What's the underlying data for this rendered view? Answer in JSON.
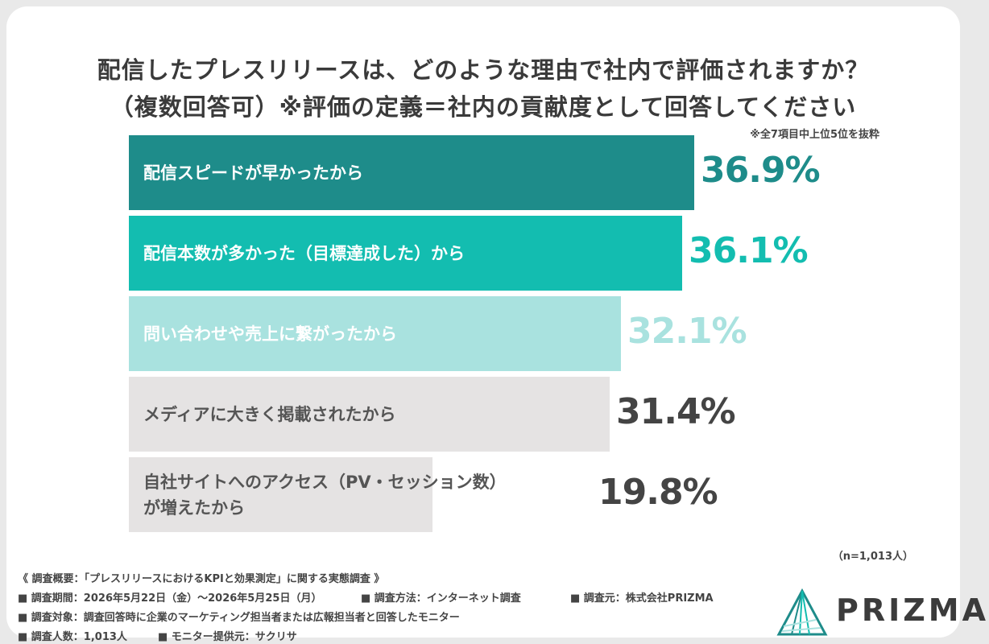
{
  "title_line1": "配信したプレスリリースは、どのような理由で社内で評価されますか？",
  "title_line2": "（複数回答可）※評価の定義＝社内の貢献度として回答してください",
  "note": "※全7項目中上位5位を抜粋",
  "sample": "（n=1,013人）",
  "chart_data": {
    "type": "bar",
    "orientation": "horizontal",
    "title": "配信したプレスリリースは、どのような理由で社内で評価されますか？（複数回答可）※評価の定義＝社内の貢献度として回答してください",
    "categories": [
      "配信スピードが早かったから",
      "配信本数が多かった（目標達成した）から",
      "問い合わせや売上に繋がったから",
      "メディアに大きく掲載されたから",
      "自社サイトへのアクセス（PV・セッション数）が増えたから"
    ],
    "category_lines": [
      [
        "配信スピードが早かったから"
      ],
      [
        "配信本数が多かった（目標達成した）から"
      ],
      [
        "問い合わせや売上に繋がったから"
      ],
      [
        "メディアに大きく掲載されたから"
      ],
      [
        "自社サイトへのアクセス（PV・セッション数）",
        "が増えたから"
      ]
    ],
    "values": [
      36.9,
      36.1,
      32.1,
      31.4,
      19.8
    ],
    "value_labels": [
      "36.9%",
      "36.1%",
      "32.1%",
      "31.4%",
      "19.8%"
    ],
    "unit": "%",
    "bar_colors": [
      "#1e8c8a",
      "#13bdb0",
      "#a9e2df",
      "#e5e3e3",
      "#e5e3e3"
    ],
    "label_colors": [
      "#ffffff",
      "#ffffff",
      "#ffffff",
      "#555555",
      "#555555"
    ],
    "value_colors": [
      "#1e8c8a",
      "#13bdb0",
      "#a9e2df",
      "#444444",
      "#444444"
    ]
  },
  "footer": {
    "line1": "《 調査概要：「プレスリリースにおけるKPIと効果測定」に関する実態調査 》",
    "period": "■ 調査期間：2026年5月22日（金）〜2026年5月25日（月）",
    "method": "■ 調査方法：インターネット調査",
    "source": "■ 調査元：株式会社PRIZMA",
    "target": "■ 調査対象：調査回答時に企業のマーケティング担当者または広報担当者と回答したモニター",
    "count": "■ 調査人数：1,013人",
    "provider": "■ モニター提供元：サクリサ"
  },
  "logo": {
    "text": "PRIZMA",
    "icon": "prism-icon"
  }
}
